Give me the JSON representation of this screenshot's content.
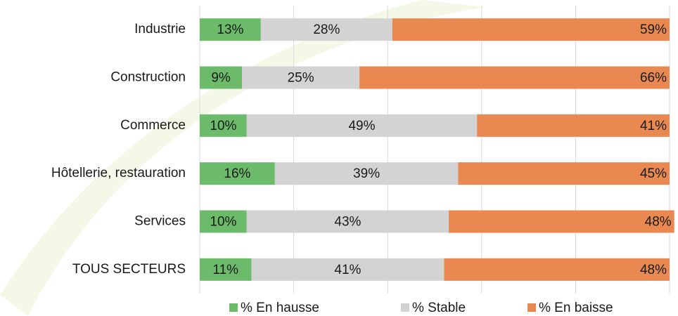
{
  "chart_data": {
    "type": "stacked-bar-horizontal",
    "categories": [
      "Industrie",
      "Construction",
      "Commerce",
      "Hôtellerie, restauration",
      "Services",
      "TOUS SECTEURS"
    ],
    "series": [
      {
        "name": "% En hausse",
        "color": "#6cbb6b",
        "values": [
          13,
          9,
          10,
          16,
          10,
          11
        ],
        "value_labels": [
          "13%",
          "9%",
          "10%",
          "16%",
          "10%",
          "11%"
        ]
      },
      {
        "name": "% Stable",
        "color": "#d3d3d3",
        "values": [
          28,
          25,
          49,
          39,
          43,
          41
        ],
        "value_labels": [
          "28%",
          "25%",
          "49%",
          "39%",
          "43%",
          "41%"
        ]
      },
      {
        "name": "% En baisse",
        "color": "#e98951",
        "values": [
          59,
          66,
          41,
          45,
          48,
          48
        ],
        "value_labels": [
          "59%",
          "66%",
          "41%",
          "45%",
          "48%",
          "48%"
        ]
      }
    ],
    "xlim": [
      0,
      100
    ],
    "xticks": [
      0,
      20,
      40,
      60,
      80,
      100
    ],
    "grid": true,
    "legend": "bottom"
  }
}
